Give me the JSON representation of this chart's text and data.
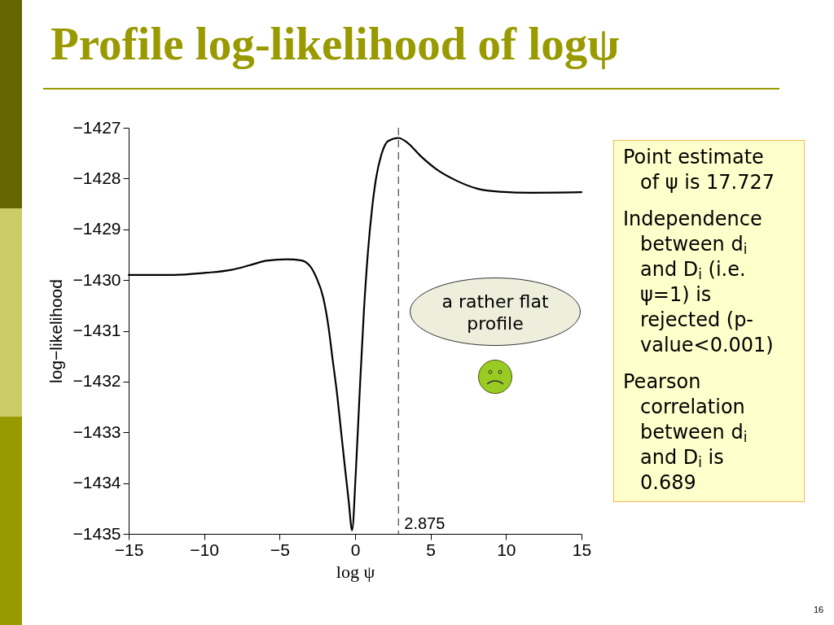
{
  "chart_data": {
    "type": "line",
    "title": "Profile log-likelihood of logψ",
    "xlabel": "log ψ",
    "ylabel": "log−likelihood",
    "x": [
      -15,
      -12,
      -10,
      -8.2,
      -7,
      -5.9,
      -4.5,
      -3.6,
      -3.0,
      -2.6,
      -2.1,
      -1.75,
      -1.5,
      -1.2,
      -0.95,
      -0.68,
      -0.42,
      -0.2,
      0.04,
      0.3,
      0.58,
      0.85,
      1.12,
      1.38,
      1.74,
      2.19,
      2.875,
      3.45,
      4.35,
      5.4,
      6.7,
      8.1,
      9.6,
      11.7,
      15
    ],
    "series": [
      {
        "color": "#000000",
        "values": [
          -1429.9,
          -1429.9,
          -1429.86,
          -1429.8,
          -1429.71,
          -1429.62,
          -1429.59,
          -1429.61,
          -1429.72,
          -1429.93,
          -1430.36,
          -1430.95,
          -1431.54,
          -1432.23,
          -1432.92,
          -1433.67,
          -1434.37,
          -1434.93,
          -1433.83,
          -1432.23,
          -1430.63,
          -1429.45,
          -1428.6,
          -1428.01,
          -1427.53,
          -1427.26,
          -1427.2,
          -1427.29,
          -1427.56,
          -1427.82,
          -1428.04,
          -1428.2,
          -1428.26,
          -1428.28,
          -1428.27
        ]
      }
    ],
    "xlim": [
      -15,
      15
    ],
    "ylim": [
      -1435,
      -1427
    ],
    "xticks": [
      -15,
      -10,
      -5,
      0,
      5,
      10,
      15
    ],
    "yticks": [
      -1435,
      -1434,
      -1433,
      -1432,
      -1431,
      -1430,
      -1429,
      -1428,
      -1427
    ],
    "ref_lines": [
      {
        "axis": "x",
        "value": 2.875,
        "label": "2.875",
        "color": "#555555",
        "line_style": "dashed"
      }
    ],
    "annotations": [
      "a rather flat profile",
      "Point estimate of ψ is 17.727",
      "Independence between d$_{i}$ and D$_{i}$ (i.e. ψ=1) is rejected (p-value<0.001)",
      "Pearson correlation between d$_{i}$ and D$_{i}$ is 0.689",
      "16"
    ]
  }
}
